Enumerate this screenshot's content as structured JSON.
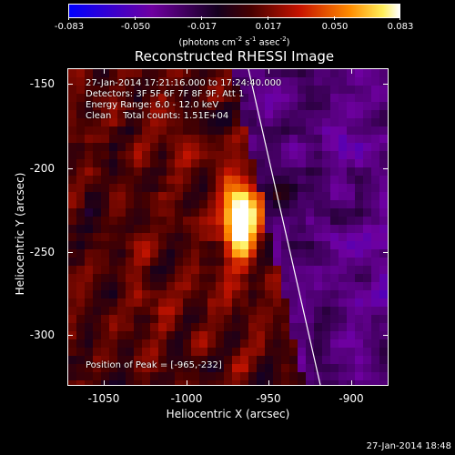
{
  "colorbar": {
    "ticks": [
      "-0.083",
      "-0.050",
      "-0.017",
      "0.017",
      "0.050",
      "0.083"
    ],
    "units_main": "(photons cm",
    "units_exp1": "-2",
    "units_mid1": " s",
    "units_exp2": "-1",
    "units_mid2": " asec",
    "units_exp3": "-2",
    "units_end": ")"
  },
  "plot": {
    "title": "Reconstructed RHESSI Image",
    "info_lines": [
      "27-Jan-2014 17:21:16.000 to 17:24:40.000",
      "Detectors: 3F 5F 6F 7F 8F 9F, Att 1",
      "Energy Range: 6.0 - 12.0 keV",
      "Clean    Total counts: 1.51E+04"
    ],
    "peak_label": "Position of Peak = [-965,-232]",
    "xlabel": "Heliocentric X (arcsec)",
    "ylabel": "Heliocentric Y (arcsec)",
    "xticks": [
      "-1050",
      "-1000",
      "-950",
      "-900"
    ],
    "yticks": [
      "-150",
      "-200",
      "-250",
      "-300"
    ]
  },
  "footer": {
    "timestamp": "27-Jan-2014 18:48"
  },
  "colors": {
    "background": "#000000",
    "foreground": "#ffffff"
  }
}
